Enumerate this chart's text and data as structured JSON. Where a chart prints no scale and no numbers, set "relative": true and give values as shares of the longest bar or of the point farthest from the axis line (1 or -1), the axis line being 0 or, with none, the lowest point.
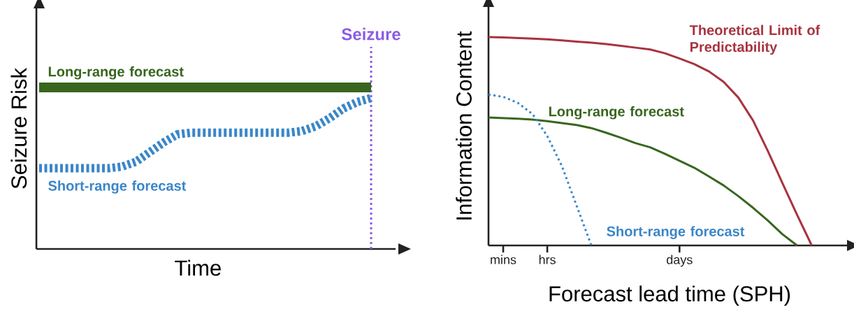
{
  "chart_data": [
    {
      "type": "line",
      "relative": true,
      "xlabel": "Time",
      "ylabel": "Seizure Risk",
      "categories": [
        null,
        null,
        null,
        null,
        null,
        null,
        null,
        null,
        null,
        null,
        null,
        null,
        null,
        null,
        null,
        null,
        null,
        null,
        null,
        null,
        null,
        null,
        null,
        null,
        null
      ],
      "series": [
        {
          "name": "Long-range forecast",
          "color": "#38661f",
          "line_style": "solid",
          "values": [
            1,
            1,
            1,
            1,
            1,
            1,
            1,
            1,
            1,
            1,
            1,
            1,
            1,
            1,
            1,
            1,
            1,
            1,
            1,
            1,
            1,
            1,
            1,
            1,
            1
          ]
        },
        {
          "name": "Short-range forecast",
          "color": "#3a86c8",
          "line_style": "dashed",
          "values": [
            0.5,
            0.5,
            0.5,
            0.5,
            0.5,
            0.5,
            0.51,
            0.54,
            0.6,
            0.66,
            0.71,
            0.72,
            0.72,
            0.72,
            0.72,
            0.72,
            0.72,
            0.72,
            0.72,
            0.73,
            0.76,
            0.81,
            0.87,
            0.91,
            0.935
          ]
        }
      ],
      "annotations": [
        "Seizure"
      ]
    },
    {
      "type": "line",
      "relative": true,
      "xlabel": "Forecast lead time (SPH)",
      "ylabel": "Information Content",
      "categories": [
        null,
        "mins",
        null,
        null,
        "hrs",
        null,
        null,
        null,
        null,
        null,
        null,
        null,
        null,
        "days",
        null,
        null,
        null,
        null,
        null,
        null,
        null,
        null,
        null
      ],
      "series": [
        {
          "name": "Theoretical Limit of Predictability",
          "color": "#a8333f",
          "line_style": "solid",
          "values": [
            1,
            0.998,
            0.995,
            0.992,
            0.989,
            0.984,
            0.978,
            0.973,
            0.966,
            0.958,
            0.949,
            0.94,
            0.922,
            0.897,
            0.87,
            0.835,
            0.785,
            0.71,
            0.6,
            0.455,
            0.3,
            0.147,
            0
          ]
        },
        {
          "name": "Long-range forecast",
          "color": "#38661f",
          "line_style": "solid",
          "values": [
            0.614,
            0.611,
            0.608,
            0.604,
            0.596,
            0.587,
            0.578,
            0.563,
            0.541,
            0.517,
            0.491,
            0.471,
            0.44,
            0.406,
            0.373,
            0.331,
            0.288,
            0.237,
            0.181,
            0.12,
            0.054,
            0,
            null
          ]
        },
        {
          "name": "Short-range forecast",
          "color": "#3a86c8",
          "line_style": "dotted",
          "values": [
            0.724,
            0.713,
            0.684,
            0.63,
            0.525,
            0.38,
            0.19,
            0,
            null,
            null,
            null,
            null,
            null,
            null,
            null,
            null,
            null,
            null,
            null,
            null,
            null,
            null,
            null
          ]
        }
      ]
    }
  ]
}
